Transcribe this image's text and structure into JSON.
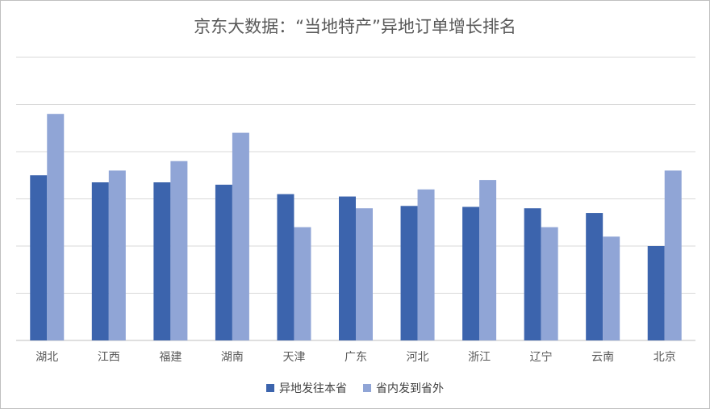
{
  "chart_data": {
    "type": "bar",
    "title": "京东大数据：“当地特产”异地订单增长排名",
    "categories": [
      "湖北",
      "江西",
      "福建",
      "湖南",
      "天津",
      "广东",
      "河北",
      "浙江",
      "辽宁",
      "云南",
      "北京"
    ],
    "series": [
      {
        "name": "异地发往本省",
        "color": "#3c64ad",
        "values": [
          3.5,
          3.35,
          3.35,
          3.3,
          3.1,
          3.05,
          2.85,
          2.83,
          2.8,
          2.7,
          2.0
        ]
      },
      {
        "name": "省内发到省外",
        "color": "#90a5d6",
        "values": [
          4.8,
          3.6,
          3.8,
          4.4,
          2.4,
          2.8,
          3.2,
          3.4,
          2.4,
          2.2,
          3.6
        ]
      }
    ],
    "ylim": [
      0,
      6
    ],
    "y_gridlines": [
      0,
      1,
      2,
      3,
      4,
      5,
      6
    ],
    "y_tick_labels_shown": false,
    "grid": true,
    "legend_position": "bottom"
  }
}
